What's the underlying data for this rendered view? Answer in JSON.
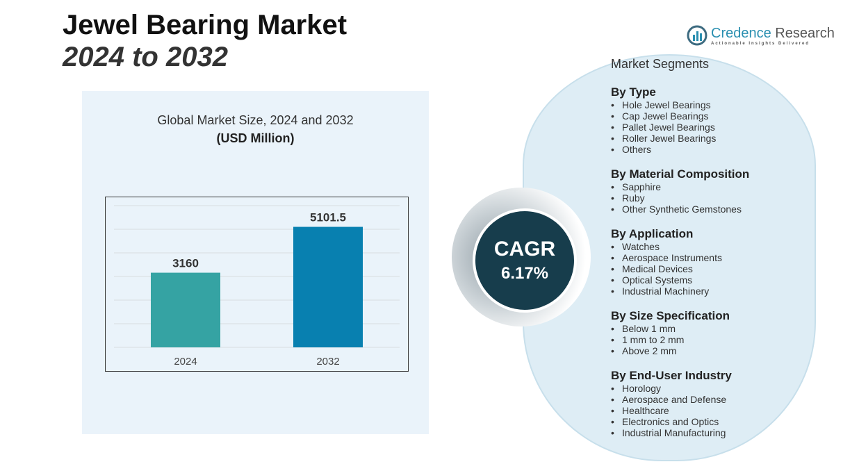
{
  "header": {
    "title": "Jewel Bearing Market",
    "subtitle": "2024 to 2032"
  },
  "logo": {
    "name_part1": "Credence",
    "name_part2": "Research",
    "tagline": "Actionable Insights Delivered"
  },
  "colors": {
    "bar_2024": "#35a3a3",
    "bar_2032": "#0880b0",
    "cagr_circle": "#173d4c",
    "segment_bg": "#deedf5"
  },
  "chart_data": {
    "type": "bar",
    "title": "Global Market Size, 2024 and 2032",
    "subtitle": "(USD Million)",
    "categories": [
      "2024",
      "2032"
    ],
    "values": [
      3160,
      5101.5
    ],
    "ylim": [
      0,
      6000
    ],
    "grid": true,
    "xlabel": "",
    "ylabel": ""
  },
  "cagr": {
    "label": "CAGR",
    "value": "6.17%"
  },
  "segments": {
    "heading": "Market Segments",
    "groups": [
      {
        "title": "By Type",
        "items": [
          "Hole Jewel Bearings",
          "Cap Jewel Bearings",
          "Pallet Jewel Bearings",
          "Roller Jewel Bearings",
          "Others"
        ]
      },
      {
        "title": "By Material Composition",
        "items": [
          "Sapphire",
          "Ruby",
          "Other Synthetic Gemstones"
        ]
      },
      {
        "title": "By Application",
        "items": [
          "Watches",
          "Aerospace Instruments",
          "Medical Devices",
          "Optical Systems",
          "Industrial Machinery"
        ]
      },
      {
        "title": "By Size Specification",
        "items": [
          "Below 1 mm",
          "1 mm to 2 mm",
          "Above 2 mm"
        ]
      },
      {
        "title": "By End-User Industry",
        "items": [
          "Horology",
          "Aerospace and Defense",
          "Healthcare",
          "Electronics and Optics",
          "Industrial Manufacturing"
        ]
      }
    ]
  }
}
